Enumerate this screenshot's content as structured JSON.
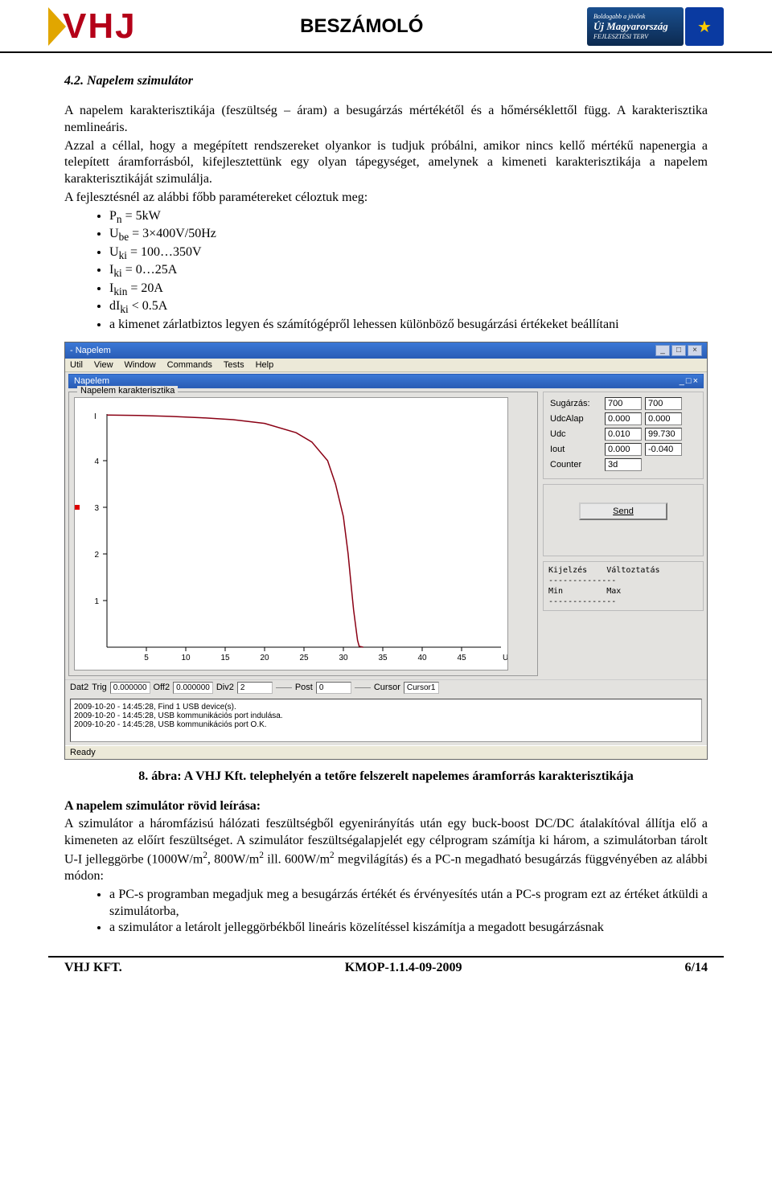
{
  "header": {
    "logo_text": "VHJ",
    "title": "BESZÁMOLÓ",
    "umo_top": "Boldogabb a jövőnk",
    "umo_main": "Új Magyarország",
    "umo_sub": "FEJLESZTÉSI TERV"
  },
  "section": {
    "num_title": "4.2. Napelem szimulátor",
    "p1": "A napelem karakterisztikája (feszültség – áram) a besugárzás mértékétől és a hőmérséklettől függ. A karakterisztika nemlineáris.",
    "p2": "Azzal a céllal, hogy a megépített rendszereket olyankor is tudjuk próbálni, amikor nincs kellő mértékű napenergia a telepített áramforrásból, kifejlesztettünk egy olyan tápegységet, amelynek a kimeneti karakterisztikája a napelem karakterisztikáját szimulálja.",
    "p3": "A fejlesztésnél az alábbi főbb paramétereket céloztuk meg:",
    "bullets": [
      {
        "html": "P<sub>n</sub> = 5kW"
      },
      {
        "html": "U<sub>be</sub> = 3×400V/50Hz"
      },
      {
        "html": "U<sub>ki</sub> = 100…350V"
      },
      {
        "html": "I<sub>ki</sub> = 0…25A"
      },
      {
        "html": "I<sub>kin</sub> = 20A"
      },
      {
        "html": "dI<sub>ki</sub> < 0.5A"
      },
      {
        "html": "a kimenet zárlatbiztos legyen és számítógépről lehessen különböző besugárzási értékeket beállítani"
      }
    ]
  },
  "app": {
    "window_title": " - Napelem",
    "menus": [
      "Util",
      "View",
      "Window",
      "Commands",
      "Tests",
      "Help"
    ],
    "subtitle": "Napelem",
    "group": "Napelem karakterisztika",
    "chart": {
      "type": "line",
      "xlim": [
        0,
        50
      ],
      "ylim": [
        0,
        5
      ],
      "xticks": [
        5,
        10,
        15,
        20,
        25,
        30,
        35,
        40,
        45
      ],
      "xtick_label_end": "U",
      "yticks": [
        1,
        2,
        3,
        4
      ],
      "ylabel_top": "I",
      "line_color": "#8a0014",
      "background": "#ffffff",
      "axis_color": "#000000",
      "line_width": 1.5,
      "tick_fontsize": 10,
      "points_x": [
        0,
        4,
        8,
        12,
        16,
        20,
        24,
        26,
        28,
        29,
        30,
        30.6,
        31,
        31.3,
        31.6,
        31.8,
        32,
        32.5
      ],
      "points_y": [
        4.98,
        4.97,
        4.95,
        4.92,
        4.88,
        4.8,
        4.6,
        4.4,
        4.0,
        3.5,
        2.8,
        2.0,
        1.3,
        0.8,
        0.4,
        0.15,
        0.02,
        0
      ]
    },
    "values": [
      {
        "label": "Sugárzás:",
        "a": "700",
        "b": "700"
      },
      {
        "label": "UdcAlap",
        "a": "0.000",
        "b": "0.000"
      },
      {
        "label": "Udc",
        "a": "0.010",
        "b": "99.730"
      },
      {
        "label": "Iout",
        "a": "0.000",
        "b": "-0.040"
      },
      {
        "label": "Counter",
        "a": "3d",
        "b": ""
      }
    ],
    "send_label": "Send",
    "status_row": {
      "dat": "Dat2",
      "trig_l": "Trig",
      "trig": "0.000000",
      "off_l": "Off2",
      "off": "0.000000",
      "div_l": "Div2",
      "div": "2",
      "post_l": "Post",
      "post": "0",
      "cursor_l": "Cursor",
      "cursor": "Cursor1"
    },
    "log_lines": [
      "2009-10-20 - 14:45:28, Find 1 USB device(s).",
      "2009-10-20 - 14:45:28, USB kommunikációs port indulása.",
      "2009-10-20 - 14:45:28, USB kommunikációs port O.K."
    ],
    "kv": {
      "h1": "Kijelzés",
      "h2": "Változtatás",
      "min": "Min",
      "max": "Max",
      "dash": "--------------"
    },
    "ready": "Ready"
  },
  "caption": "8. ábra: A VHJ Kft. telephelyén a tetőre felszerelt napelemes áramforrás karakterisztikája",
  "body2": {
    "heading": "A napelem szimulátor rövid leírása:",
    "p": "A szimulátor a háromfázisú hálózati feszültségből egyenirányítás után egy buck-boost DC/DC átalakítóval állítja elő a kimeneten az előírt feszültséget. A szimulátor feszültségalapjelét egy célprogram számítja ki három, a szimulátorban tárolt U-I jelleggörbe (1000W/m², 800W/m² ill. 600W/m² megvilágítás) és a PC-n megadható besugárzás függvényében az alábbi módon:",
    "bullets": [
      "a PC-s programban megadjuk meg a besugárzás értékét és érvényesítés után a PC-s program ezt az értéket átküldi a szimulátorba,",
      "a szimulátor a letárolt jelleggörbékből lineáris közelítéssel kiszámítja a megadott besugárzásnak"
    ]
  },
  "footer": {
    "left": "VHJ KFT.",
    "center": "KMOP-1.1.4-09-2009",
    "right": "6/14"
  }
}
